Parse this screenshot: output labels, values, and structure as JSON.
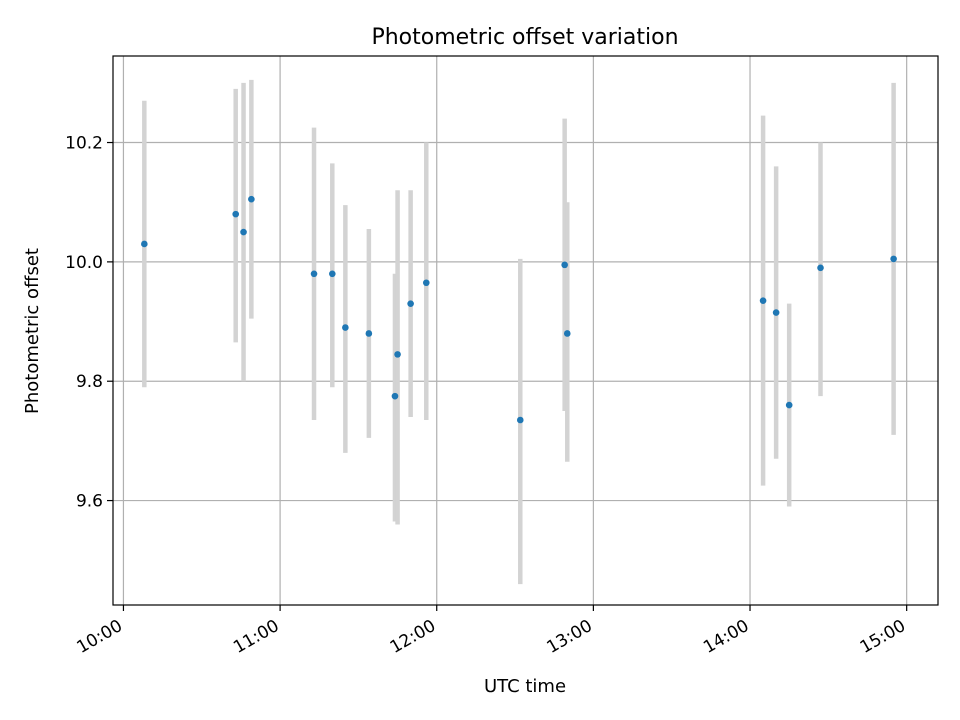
{
  "chart_data": {
    "type": "scatter",
    "title": "Photometric offset variation",
    "xlabel": "UTC time",
    "ylabel": "Photometric offset",
    "x_axis_type": "time",
    "xlim": [
      "09:56",
      "15:12"
    ],
    "ylim": [
      9.425,
      10.345
    ],
    "x_ticks": [
      "10:00",
      "11:00",
      "12:00",
      "13:00",
      "14:00",
      "15:00"
    ],
    "y_ticks": [
      9.6,
      9.8,
      10.0,
      10.2
    ],
    "y_tick_labels": [
      "9.6",
      "9.8",
      "10.0",
      "10.2"
    ],
    "grid": true,
    "legend": "none",
    "colors": {
      "point": "#1f77b4",
      "errorbar": "#d3d3d3",
      "grid": "#b0b0b0"
    },
    "points": [
      {
        "t": "10:08",
        "y": 10.03,
        "err_low": 9.79,
        "err_high": 10.27
      },
      {
        "t": "10:43",
        "y": 10.08,
        "err_low": 9.865,
        "err_high": 10.29
      },
      {
        "t": "10:46",
        "y": 10.05,
        "err_low": 9.8,
        "err_high": 10.3
      },
      {
        "t": "10:49",
        "y": 10.105,
        "err_low": 9.905,
        "err_high": 10.305
      },
      {
        "t": "11:13",
        "y": 9.98,
        "err_low": 9.735,
        "err_high": 10.225
      },
      {
        "t": "11:20",
        "y": 9.98,
        "err_low": 9.79,
        "err_high": 10.165
      },
      {
        "t": "11:25",
        "y": 9.89,
        "err_low": 9.68,
        "err_high": 10.095
      },
      {
        "t": "11:34",
        "y": 9.88,
        "err_low": 9.705,
        "err_high": 10.055
      },
      {
        "t": "11:44",
        "y": 9.775,
        "err_low": 9.565,
        "err_high": 9.98
      },
      {
        "t": "11:45",
        "y": 9.845,
        "err_low": 9.56,
        "err_high": 10.12
      },
      {
        "t": "11:50",
        "y": 9.93,
        "err_low": 9.74,
        "err_high": 10.12
      },
      {
        "t": "11:56",
        "y": 9.965,
        "err_low": 9.735,
        "err_high": 10.2
      },
      {
        "t": "12:32",
        "y": 9.735,
        "err_low": 9.46,
        "err_high": 10.005
      },
      {
        "t": "12:49",
        "y": 9.995,
        "err_low": 9.75,
        "err_high": 10.24
      },
      {
        "t": "12:50",
        "y": 9.88,
        "err_low": 9.665,
        "err_high": 10.1
      },
      {
        "t": "14:05",
        "y": 9.935,
        "err_low": 9.625,
        "err_high": 10.245
      },
      {
        "t": "14:10",
        "y": 9.915,
        "err_low": 9.67,
        "err_high": 10.16
      },
      {
        "t": "14:15",
        "y": 9.76,
        "err_low": 9.59,
        "err_high": 9.93
      },
      {
        "t": "14:27",
        "y": 9.99,
        "err_low": 9.775,
        "err_high": 10.2
      },
      {
        "t": "14:55",
        "y": 10.005,
        "err_low": 9.71,
        "err_high": 10.3
      }
    ]
  }
}
